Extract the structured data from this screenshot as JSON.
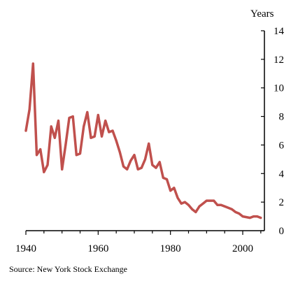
{
  "chart_data": {
    "type": "line",
    "ylabel": "Years",
    "source": "Source:  New York Stock Exchange",
    "xlim": [
      1940,
      2006
    ],
    "ylim": [
      0,
      14
    ],
    "x_ticks": [
      1940,
      1960,
      1980,
      2000
    ],
    "y_ticks": [
      0,
      2,
      4,
      6,
      8,
      10,
      12,
      14
    ],
    "y_axis_position": "right",
    "grid": false,
    "line_color": "#c0504d",
    "series": [
      {
        "x": [
          1940,
          1941,
          1942,
          1943,
          1944,
          1945,
          1946,
          1947,
          1948,
          1949,
          1950,
          1951,
          1952,
          1953,
          1954,
          1955,
          1956,
          1957,
          1958,
          1959,
          1960,
          1961,
          1962,
          1963,
          1964,
          1965,
          1966,
          1967,
          1968,
          1969,
          1970,
          1971,
          1972,
          1973,
          1974,
          1975,
          1976,
          1977,
          1978,
          1979,
          1980,
          1981,
          1982,
          1983,
          1984,
          1985,
          1986,
          1987,
          1988,
          1989,
          1990,
          1991,
          1992,
          1993,
          1994,
          1995,
          1996,
          1997,
          1998,
          1999,
          2000,
          2001,
          2002,
          2003,
          2004,
          2005
        ],
        "values": [
          7.0,
          8.5,
          11.7,
          5.3,
          5.7,
          4.1,
          4.6,
          7.3,
          6.5,
          7.7,
          4.3,
          6.0,
          7.9,
          8.0,
          5.3,
          5.4,
          7.3,
          8.3,
          6.5,
          6.6,
          8.1,
          6.6,
          7.7,
          6.9,
          7.0,
          6.3,
          5.5,
          4.5,
          4.3,
          4.9,
          5.3,
          4.3,
          4.4,
          5.0,
          6.1,
          4.6,
          4.4,
          4.8,
          3.7,
          3.6,
          2.8,
          3.0,
          2.3,
          1.9,
          2.0,
          1.8,
          1.5,
          1.3,
          1.7,
          1.9,
          2.1,
          2.1,
          2.1,
          1.8,
          1.8,
          1.7,
          1.6,
          1.5,
          1.3,
          1.2,
          1.0,
          0.95,
          0.9,
          1.0,
          1.0,
          0.9
        ]
      }
    ]
  }
}
